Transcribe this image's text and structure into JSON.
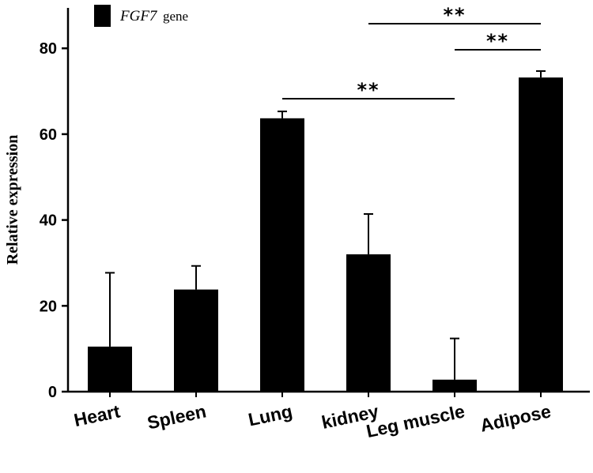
{
  "chart_data": {
    "type": "bar",
    "title": "",
    "xlabel": "",
    "ylabel": "Relative expression",
    "ylim": [
      0,
      88
    ],
    "yticks": [
      0,
      20,
      40,
      60,
      80
    ],
    "categories": [
      "Heart",
      "Spleen",
      "Lung",
      "kidney",
      "Leg muscle",
      "Adipose"
    ],
    "series": [
      {
        "name": "FGF7 gene",
        "legend_italic": "FGF7",
        "legend_rest": "gene",
        "color": "#000000",
        "values": [
          10.5,
          23.8,
          63.7,
          32.0,
          2.8,
          73.2
        ],
        "error_upper": [
          17.2,
          5.5,
          1.6,
          9.4,
          9.6,
          1.5
        ]
      }
    ],
    "significance": [
      {
        "from": "Lung",
        "to": "Leg muscle",
        "label": "**"
      },
      {
        "from": "kidney",
        "to": "Adipose",
        "label": "**"
      },
      {
        "from": "Leg muscle",
        "to": "Adipose",
        "label": "**"
      }
    ],
    "legend_position": "top-left"
  }
}
